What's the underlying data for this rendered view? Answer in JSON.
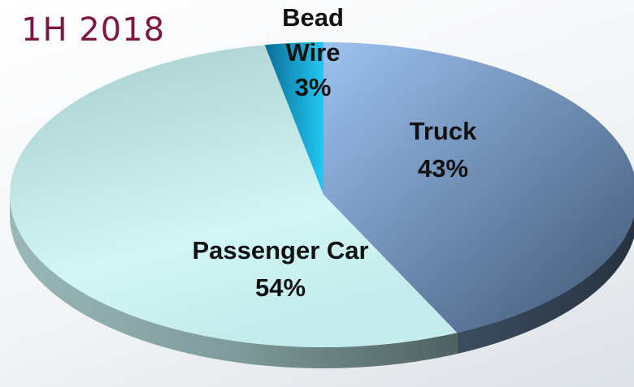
{
  "chart_data": {
    "type": "pie",
    "title": "1H 2018",
    "categories": [
      "Truck",
      "Passenger Car",
      "Bead Wire"
    ],
    "values": [
      43,
      54,
      3
    ],
    "value_labels": [
      "43%",
      "54%",
      "3%"
    ],
    "colors": [
      "#86aee0",
      "#c4ecec",
      "#19b9ea"
    ]
  }
}
